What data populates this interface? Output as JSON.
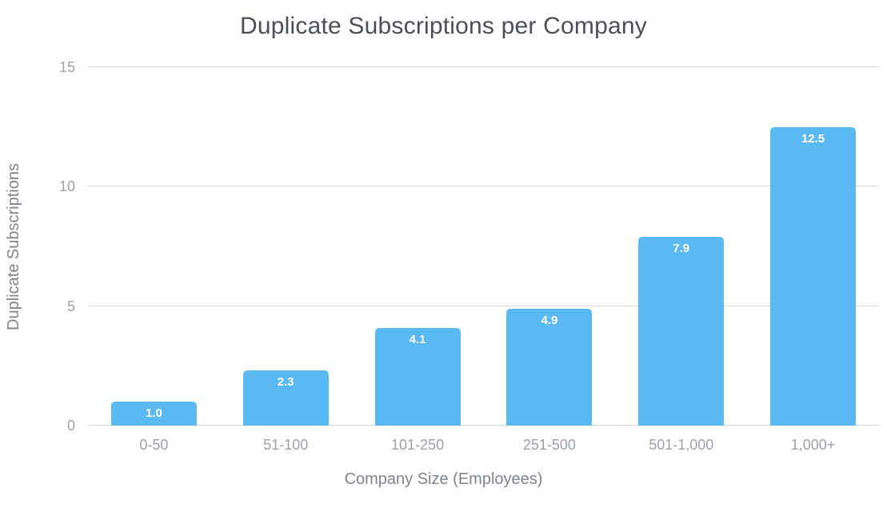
{
  "chart_data": {
    "type": "bar",
    "title": "Duplicate Subscriptions per Company",
    "categories": [
      "0-50",
      "51-100",
      "101-250",
      "251-500",
      "501-1,000",
      "1,000+"
    ],
    "values": [
      1.0,
      2.3,
      4.1,
      4.9,
      7.9,
      12.5
    ],
    "value_labels": [
      "1.0",
      "2.3",
      "4.1",
      "4.9",
      "7.9",
      "12.5"
    ],
    "xlabel": "Company Size (Employees)",
    "ylabel": "Duplicate Subscriptions",
    "ylim": [
      0,
      15
    ],
    "yticks": [
      0,
      5,
      10,
      15
    ],
    "grid": true,
    "legend": "none",
    "bar_color": "#5bb9f2",
    "label_color": "#ffffff",
    "gridline_color": "#d7dadd",
    "axis_text_color": "#9aa1a9",
    "title_color": "#4a4f59"
  }
}
